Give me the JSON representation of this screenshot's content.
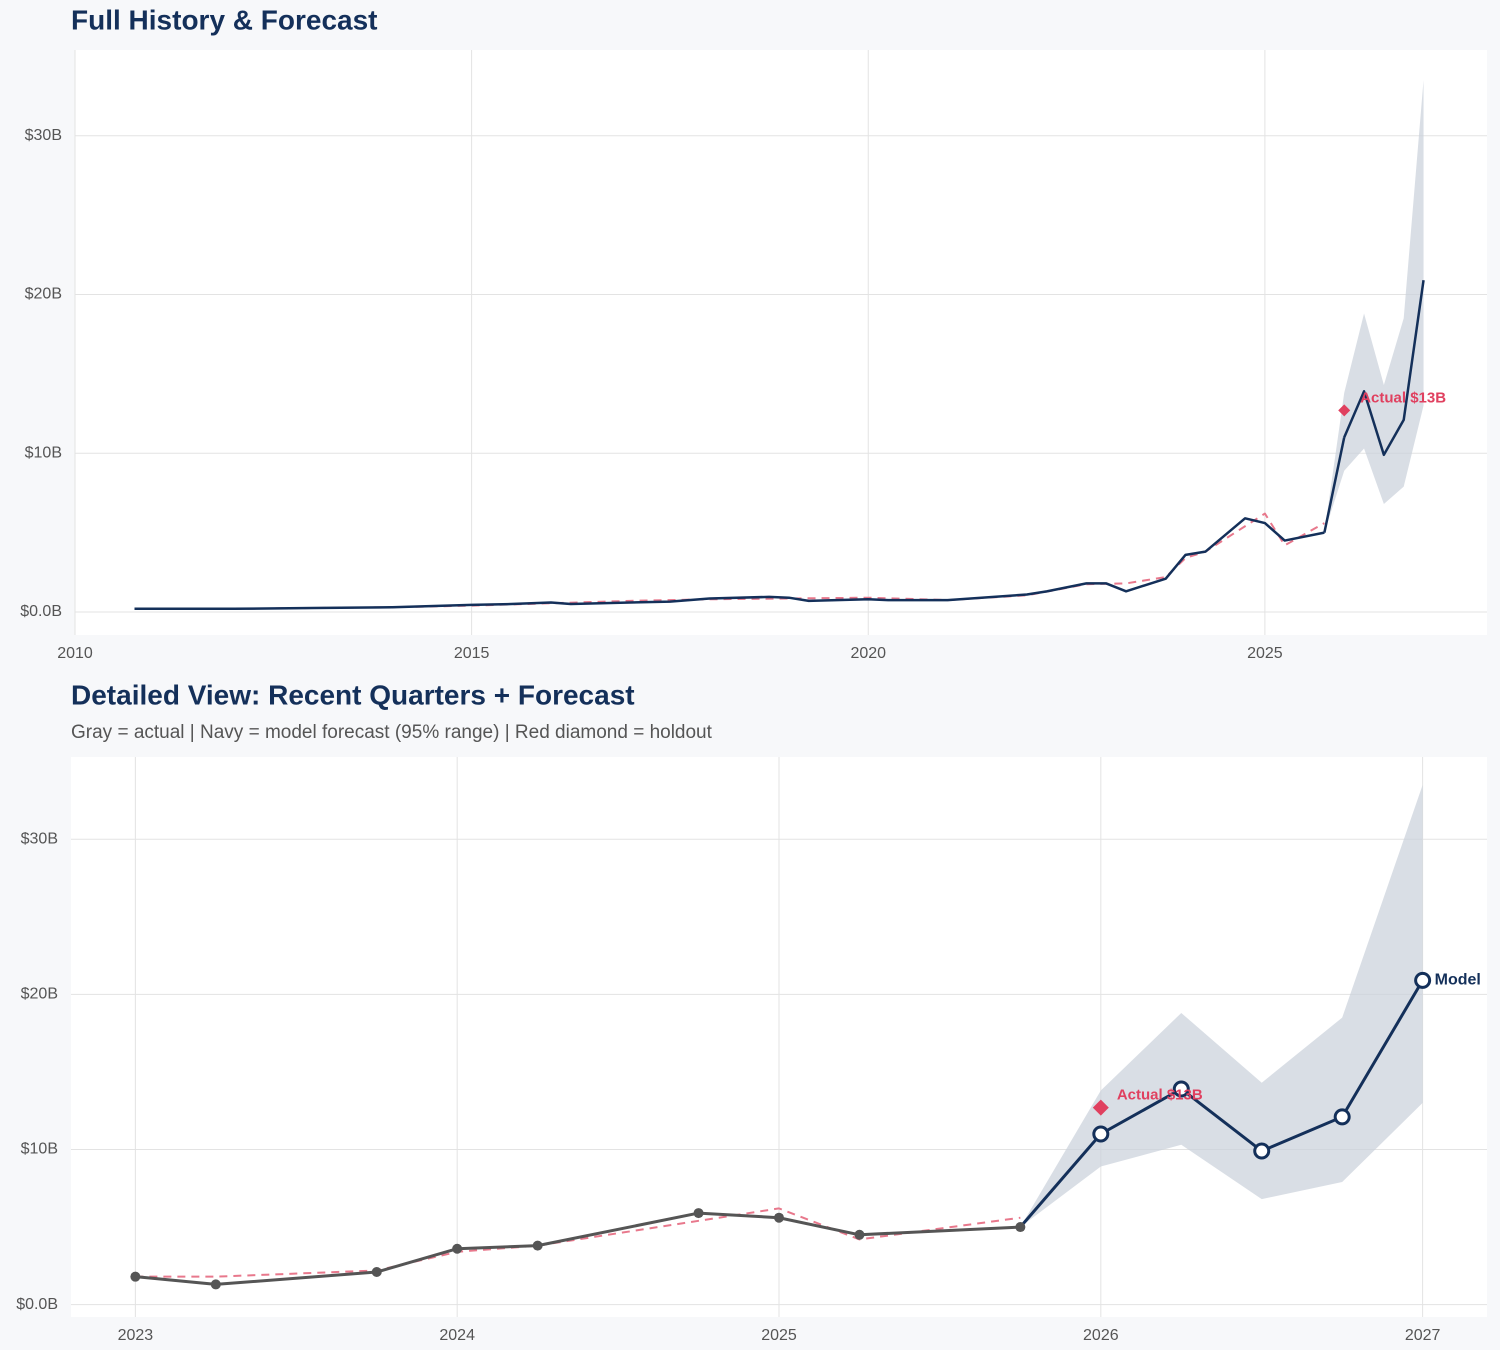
{
  "chart_data": [
    {
      "type": "line",
      "title": "Full History & Forecast",
      "xlim": [
        2010,
        2027.8
      ],
      "ylim": [
        -1.45,
        35.4
      ],
      "xticks": [
        2010,
        2015,
        2020,
        2025
      ],
      "yticks": [
        {
          "value": 0,
          "label": "$0.0B"
        },
        {
          "value": 10,
          "label": "$10B"
        },
        {
          "value": 20,
          "label": "$20B"
        },
        {
          "value": 30,
          "label": "$30B"
        }
      ],
      "grid": true,
      "band_color": "#c9d0da",
      "actual": {
        "color": "#14305a",
        "x": [
          2010.75,
          2011,
          2012,
          2013,
          2014,
          2015,
          2015.5,
          2016,
          2016.25,
          2017,
          2017.5,
          2018,
          2018.75,
          2019,
          2019.25,
          2020,
          2020.25,
          2021,
          2022,
          2022.25,
          2022.75,
          2023,
          2023.25,
          2023.75,
          2024,
          2024.25,
          2024.75,
          2025,
          2025.25,
          2025.75
        ],
        "values": [
          0.2,
          0.2,
          0.2,
          0.25,
          0.3,
          0.45,
          0.5,
          0.6,
          0.5,
          0.6,
          0.65,
          0.85,
          0.95,
          0.9,
          0.7,
          0.8,
          0.75,
          0.75,
          1.1,
          1.3,
          1.8,
          1.8,
          1.3,
          2.1,
          3.6,
          3.8,
          5.9,
          5.6,
          4.5,
          5.0
        ]
      },
      "fitted": {
        "color": "#e8788c",
        "x": [
          2012,
          2013,
          2014,
          2015,
          2016,
          2017,
          2018,
          2019,
          2020,
          2021,
          2022,
          2022.75,
          2023.25,
          2023.75,
          2024,
          2024.25,
          2024.75,
          2025,
          2025.25,
          2025.75
        ],
        "values": [
          0.2,
          0.25,
          0.3,
          0.4,
          0.55,
          0.7,
          0.8,
          0.85,
          0.9,
          0.75,
          1.05,
          1.75,
          1.8,
          2.2,
          3.4,
          3.8,
          5.4,
          6.2,
          4.2,
          5.6
        ]
      },
      "forecast": {
        "color": "#14305a",
        "x": [
          2026,
          2026.25,
          2026.5,
          2026.75,
          2027
        ],
        "values": [
          11.0,
          13.9,
          9.9,
          12.1,
          20.9
        ],
        "lower": [
          8.9,
          10.3,
          6.8,
          7.9,
          13.0
        ],
        "upper": [
          13.8,
          18.8,
          14.3,
          18.5,
          33.5
        ]
      },
      "holdout": {
        "color": "#e0405f",
        "x": 2026,
        "value": 12.7,
        "label": "Actual $13B"
      }
    },
    {
      "type": "line",
      "title": "Detailed View: Recent Quarters + Forecast",
      "subtitle": "Gray = actual  |  Navy = model forecast (95% range)  |  Red diamond = holdout",
      "xlim": [
        2022.8,
        2027.2
      ],
      "ylim": [
        -0.8,
        35.3
      ],
      "xticks": [
        2023,
        2024,
        2025,
        2026,
        2027
      ],
      "yticks": [
        {
          "value": 0,
          "label": "$0.0B"
        },
        {
          "value": 10,
          "label": "$10B"
        },
        {
          "value": 20,
          "label": "$20B"
        },
        {
          "value": 30,
          "label": "$30B"
        }
      ],
      "grid": true,
      "band_color": "#c9d0da",
      "actual": {
        "color": "#555555",
        "marker": "dot",
        "x": [
          2023,
          2023.25,
          2023.75,
          2024,
          2024.25,
          2024.75,
          2025,
          2025.25,
          2025.75
        ],
        "values": [
          1.8,
          1.3,
          2.1,
          3.6,
          3.8,
          5.9,
          5.6,
          4.5,
          5.0
        ]
      },
      "fitted": {
        "color": "#e8788c",
        "x": [
          2023,
          2023.25,
          2023.75,
          2024,
          2024.25,
          2024.75,
          2025,
          2025.25,
          2025.75
        ],
        "values": [
          1.8,
          1.8,
          2.2,
          3.4,
          3.8,
          5.4,
          6.2,
          4.2,
          5.6
        ]
      },
      "forecast": {
        "color": "#14305a",
        "marker": "ring",
        "end_label": "Model",
        "x": [
          2026,
          2026.25,
          2026.5,
          2026.75,
          2027
        ],
        "values": [
          11.0,
          13.9,
          9.9,
          12.1,
          20.9
        ],
        "lower": [
          8.9,
          10.3,
          6.8,
          7.9,
          13.0
        ],
        "upper": [
          13.8,
          18.8,
          14.3,
          18.5,
          33.5
        ]
      },
      "holdout": {
        "color": "#e0405f",
        "x": 2026,
        "value": 12.7,
        "label": "Actual $13B"
      }
    }
  ]
}
